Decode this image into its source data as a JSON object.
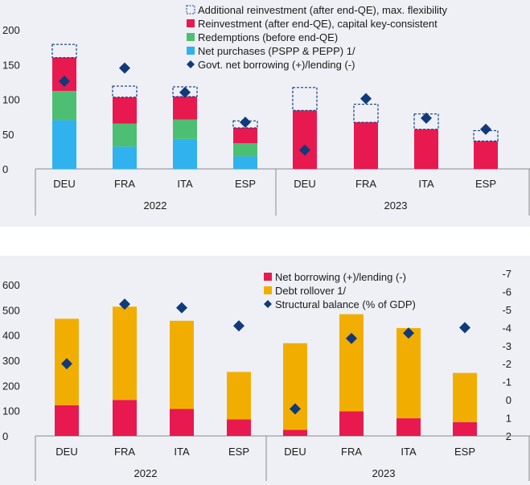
{
  "colors": {
    "reinvestment": "#e8194f",
    "redemptions": "#4cbf72",
    "net_purchases": "#2fb2ee",
    "marker": "#113a7a",
    "debt_rollover": "#f2ae00",
    "net_borrowing": "#e8194f",
    "dashed_outline": "#113a7a"
  },
  "chart_data": [
    {
      "type": "bar",
      "stacked": true,
      "groups": [
        {
          "label": "2022",
          "categories": [
            "DEU",
            "FRA",
            "ITA",
            "ESP"
          ]
        },
        {
          "label": "2023",
          "categories": [
            "DEU",
            "FRA",
            "ITA",
            "ESP"
          ]
        }
      ],
      "ylim": [
        0,
        200
      ],
      "yticks": [
        "0",
        "50",
        "100",
        "150",
        "200"
      ],
      "legend": [
        "Additional reinvestment (after end-QE), max. flexibility",
        "Reinvestment (after end-QE), capital key-consistent",
        "Redemptions (before end-QE)",
        "Net purchases (PSPP & PEPP) 1/",
        "Govt. net borrowing (+)/lending (-)"
      ],
      "series": [
        {
          "name": "Net purchases (PSPP & PEPP) 1/",
          "values": [
            70,
            32,
            43,
            18,
            0,
            0,
            0,
            0
          ]
        },
        {
          "name": "Redemptions (before end-QE)",
          "values": [
            42,
            33,
            28,
            19,
            0,
            0,
            0,
            0
          ]
        },
        {
          "name": "Reinvestment (after end-QE), capital key-consistent",
          "values": [
            48,
            38,
            33,
            22,
            84,
            67,
            57,
            40
          ]
        },
        {
          "name": "Additional reinvestment (after end-QE), max. flexibility",
          "values": [
            19,
            16,
            14,
            10,
            33,
            26,
            22,
            15
          ]
        }
      ],
      "markers": {
        "name": "Govt. net borrowing (+)/lending (-)",
        "values": [
          126,
          145,
          110,
          67,
          27,
          101,
          73,
          57
        ]
      }
    },
    {
      "type": "bar",
      "stacked": true,
      "groups": [
        {
          "label": "2022",
          "categories": [
            "DEU",
            "FRA",
            "ITA",
            "ESP"
          ]
        },
        {
          "label": "2023",
          "categories": [
            "DEU",
            "FRA",
            "ITA",
            "ESP"
          ]
        }
      ],
      "ylim": [
        0,
        600
      ],
      "yticks": [
        "0",
        "100",
        "200",
        "300",
        "400",
        "500",
        "600"
      ],
      "y2lim": [
        2,
        -7
      ],
      "y2ticks": [
        "2",
        "1",
        "0",
        "-1",
        "-2",
        "-3",
        "-4",
        "-5",
        "-6",
        "-7"
      ],
      "legend": [
        "Net borrowing (+)/lending (-)",
        "Debt rollover 1/",
        "Structural balance (% of GDP)"
      ],
      "series": [
        {
          "name": "Net borrowing (+)/lending (-)",
          "values": [
            122,
            143,
            107,
            66,
            24,
            98,
            70,
            55
          ]
        },
        {
          "name": "Debt rollover 1/",
          "values": [
            343,
            370,
            350,
            188,
            344,
            385,
            358,
            195
          ]
        }
      ],
      "markers": {
        "name": "Structural balance (% of GDP)",
        "axis": "right",
        "values": [
          -2.0,
          -5.3,
          -5.1,
          -4.1,
          0.5,
          -3.4,
          -3.7,
          -4.0
        ]
      }
    }
  ]
}
